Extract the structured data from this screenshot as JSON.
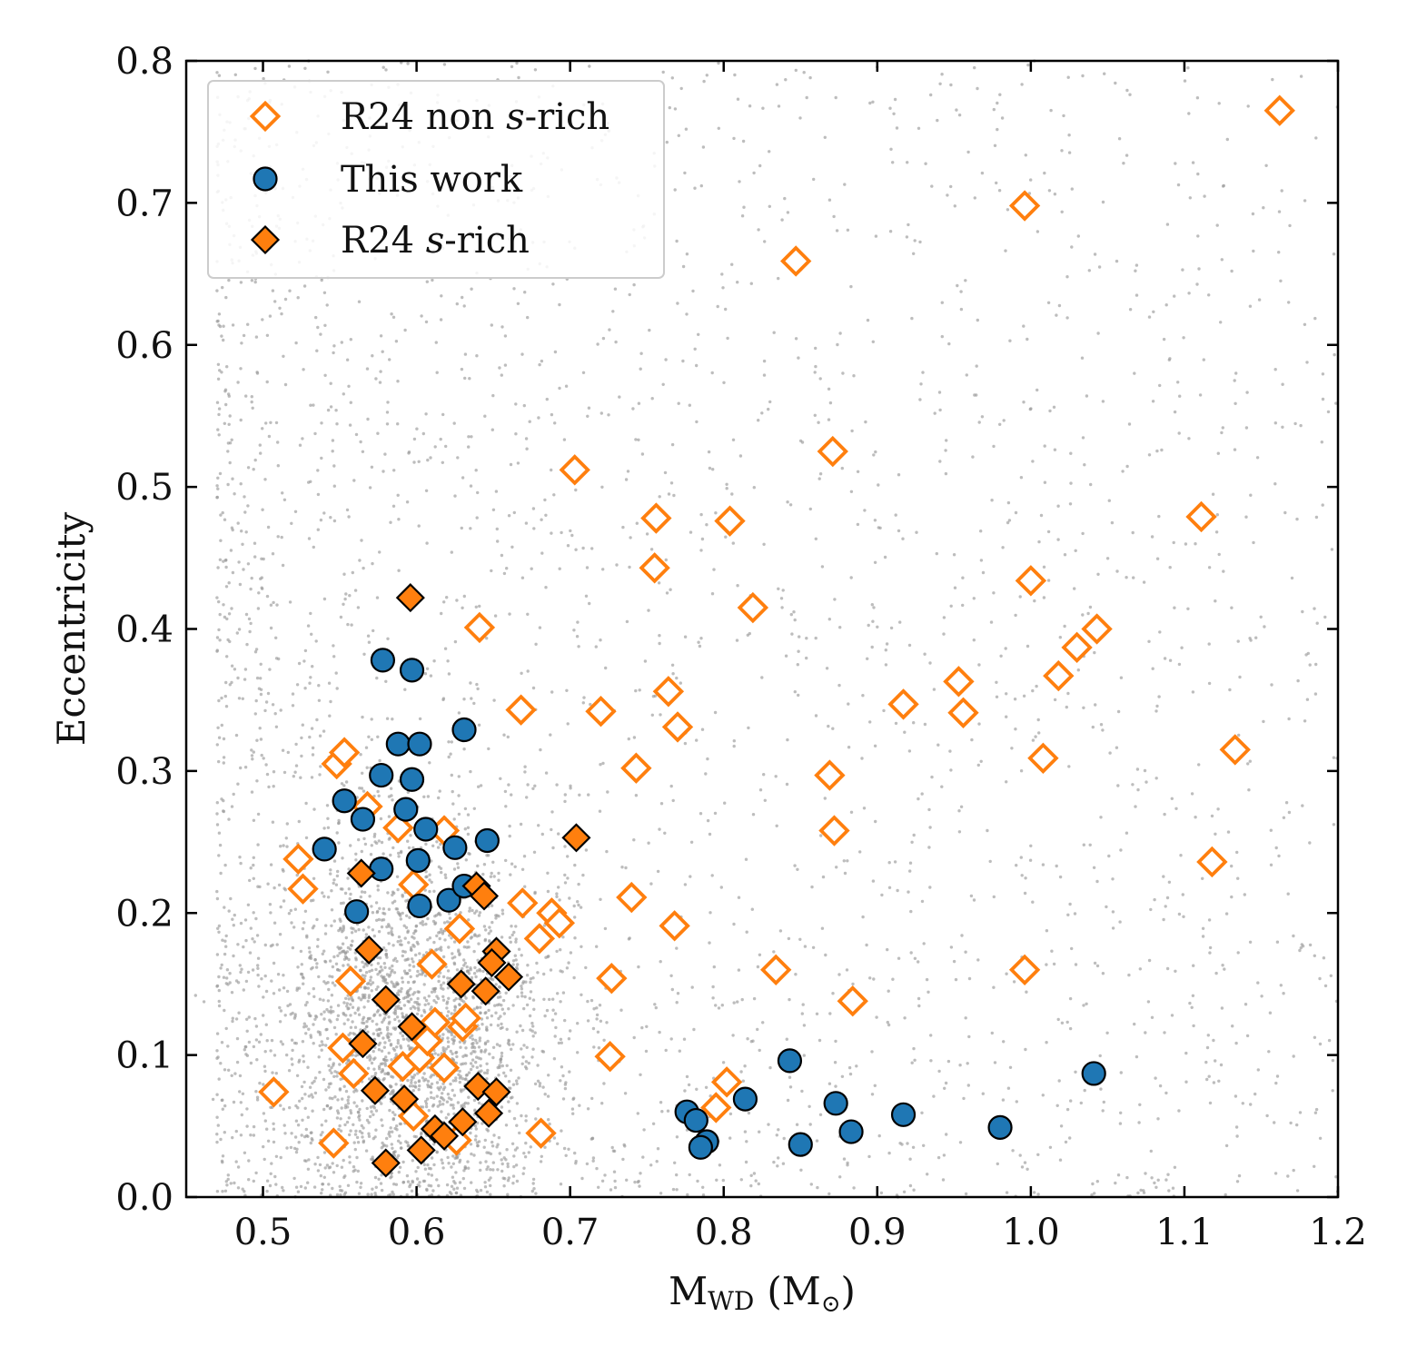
{
  "chart_data": {
    "type": "scatter",
    "title": "",
    "xlabel": "M",
    "xlabel_sub": "WD",
    "xlabel_unit": "(M",
    "xlabel_sun": "⊙",
    "xlabel_close": ")",
    "ylabel": "Eccentricity",
    "xlim": [
      0.45,
      1.2
    ],
    "ylim": [
      0.0,
      0.8
    ],
    "x_ticks": [
      "0.5",
      "0.6",
      "0.7",
      "0.8",
      "0.9",
      "1.0",
      "1.1",
      "1.2"
    ],
    "y_ticks": [
      "0.0",
      "0.1",
      "0.2",
      "0.3",
      "0.4",
      "0.5",
      "0.6",
      "0.7",
      "0.8"
    ],
    "grid": false,
    "legend_position": "top-left",
    "background_population": {
      "description_visible": false,
      "color": "#9a9a9a",
      "approx_count": 5000,
      "core_center": [
        0.6,
        0.12
      ]
    },
    "series": [
      {
        "name": "R24 non s-rich",
        "name_prefix": "R24 non ",
        "name_italic": "s",
        "name_suffix": "-rich",
        "marker": "diamond-open",
        "color": "#ff7f0e",
        "points": [
          [
            0.507,
            0.074
          ],
          [
            0.523,
            0.238
          ],
          [
            0.526,
            0.217
          ],
          [
            0.548,
            0.305
          ],
          [
            0.553,
            0.313
          ],
          [
            0.552,
            0.105
          ],
          [
            0.557,
            0.152
          ],
          [
            0.559,
            0.087
          ],
          [
            0.568,
            0.275
          ],
          [
            0.588,
            0.26
          ],
          [
            0.591,
            0.092
          ],
          [
            0.598,
            0.22
          ],
          [
            0.598,
            0.057
          ],
          [
            0.602,
            0.098
          ],
          [
            0.607,
            0.11
          ],
          [
            0.61,
            0.164
          ],
          [
            0.612,
            0.123
          ],
          [
            0.618,
            0.091
          ],
          [
            0.618,
            0.258
          ],
          [
            0.626,
            0.04
          ],
          [
            0.628,
            0.189
          ],
          [
            0.63,
            0.12
          ],
          [
            0.632,
            0.126
          ],
          [
            0.641,
            0.401
          ],
          [
            0.546,
            0.038
          ],
          [
            0.668,
            0.343
          ],
          [
            0.669,
            0.207
          ],
          [
            0.68,
            0.182
          ],
          [
            0.681,
            0.045
          ],
          [
            0.688,
            0.2
          ],
          [
            0.693,
            0.193
          ],
          [
            0.703,
            0.512
          ],
          [
            0.72,
            0.342
          ],
          [
            0.726,
            0.099
          ],
          [
            0.727,
            0.154
          ],
          [
            0.74,
            0.211
          ],
          [
            0.743,
            0.302
          ],
          [
            0.755,
            0.443
          ],
          [
            0.756,
            0.478
          ],
          [
            0.764,
            0.356
          ],
          [
            0.768,
            0.191
          ],
          [
            0.77,
            0.331
          ],
          [
            0.795,
            0.063
          ],
          [
            0.802,
            0.081
          ],
          [
            0.804,
            0.476
          ],
          [
            0.819,
            0.415
          ],
          [
            0.834,
            0.16
          ],
          [
            0.847,
            0.659
          ],
          [
            0.869,
            0.297
          ],
          [
            0.871,
            0.525
          ],
          [
            0.872,
            0.258
          ],
          [
            0.884,
            0.138
          ],
          [
            0.917,
            0.347
          ],
          [
            0.953,
            0.363
          ],
          [
            0.956,
            0.341
          ],
          [
            0.996,
            0.698
          ],
          [
            0.996,
            0.16
          ],
          [
            1.0,
            0.434
          ],
          [
            1.008,
            0.309
          ],
          [
            1.018,
            0.367
          ],
          [
            1.03,
            0.387
          ],
          [
            1.043,
            0.4
          ],
          [
            1.111,
            0.479
          ],
          [
            1.118,
            0.236
          ],
          [
            1.133,
            0.315
          ],
          [
            1.162,
            0.765
          ]
        ]
      },
      {
        "name": "This work",
        "marker": "circle",
        "color": "#1f77b4",
        "points": [
          [
            0.54,
            0.245
          ],
          [
            0.553,
            0.279
          ],
          [
            0.561,
            0.201
          ],
          [
            0.565,
            0.266
          ],
          [
            0.578,
            0.378
          ],
          [
            0.577,
            0.297
          ],
          [
            0.577,
            0.231
          ],
          [
            0.588,
            0.319
          ],
          [
            0.593,
            0.273
          ],
          [
            0.597,
            0.294
          ],
          [
            0.597,
            0.371
          ],
          [
            0.601,
            0.237
          ],
          [
            0.602,
            0.205
          ],
          [
            0.602,
            0.319
          ],
          [
            0.606,
            0.259
          ],
          [
            0.621,
            0.209
          ],
          [
            0.625,
            0.246
          ],
          [
            0.631,
            0.219
          ],
          [
            0.631,
            0.329
          ],
          [
            0.646,
            0.251
          ],
          [
            0.776,
            0.06
          ],
          [
            0.782,
            0.054
          ],
          [
            0.789,
            0.039
          ],
          [
            0.785,
            0.035
          ],
          [
            0.814,
            0.069
          ],
          [
            0.843,
            0.096
          ],
          [
            0.85,
            0.037
          ],
          [
            0.873,
            0.066
          ],
          [
            0.883,
            0.046
          ],
          [
            0.917,
            0.058
          ],
          [
            0.98,
            0.049
          ],
          [
            1.041,
            0.087
          ]
        ]
      },
      {
        "name": "R24 s-rich",
        "name_prefix": "R24 ",
        "name_italic": "s",
        "name_suffix": "-rich",
        "marker": "diamond-filled",
        "color": "#ff7f0e",
        "edgecolor": "#000000",
        "points": [
          [
            0.596,
            0.422
          ],
          [
            0.704,
            0.253
          ],
          [
            0.564,
            0.228
          ],
          [
            0.639,
            0.219
          ],
          [
            0.644,
            0.212
          ],
          [
            0.569,
            0.174
          ],
          [
            0.652,
            0.173
          ],
          [
            0.649,
            0.165
          ],
          [
            0.66,
            0.155
          ],
          [
            0.629,
            0.15
          ],
          [
            0.645,
            0.145
          ],
          [
            0.58,
            0.139
          ],
          [
            0.597,
            0.12
          ],
          [
            0.565,
            0.108
          ],
          [
            0.573,
            0.075
          ],
          [
            0.592,
            0.069
          ],
          [
            0.64,
            0.078
          ],
          [
            0.652,
            0.074
          ],
          [
            0.647,
            0.059
          ],
          [
            0.63,
            0.053
          ],
          [
            0.612,
            0.048
          ],
          [
            0.618,
            0.043
          ],
          [
            0.603,
            0.033
          ],
          [
            0.58,
            0.024
          ]
        ]
      }
    ]
  }
}
